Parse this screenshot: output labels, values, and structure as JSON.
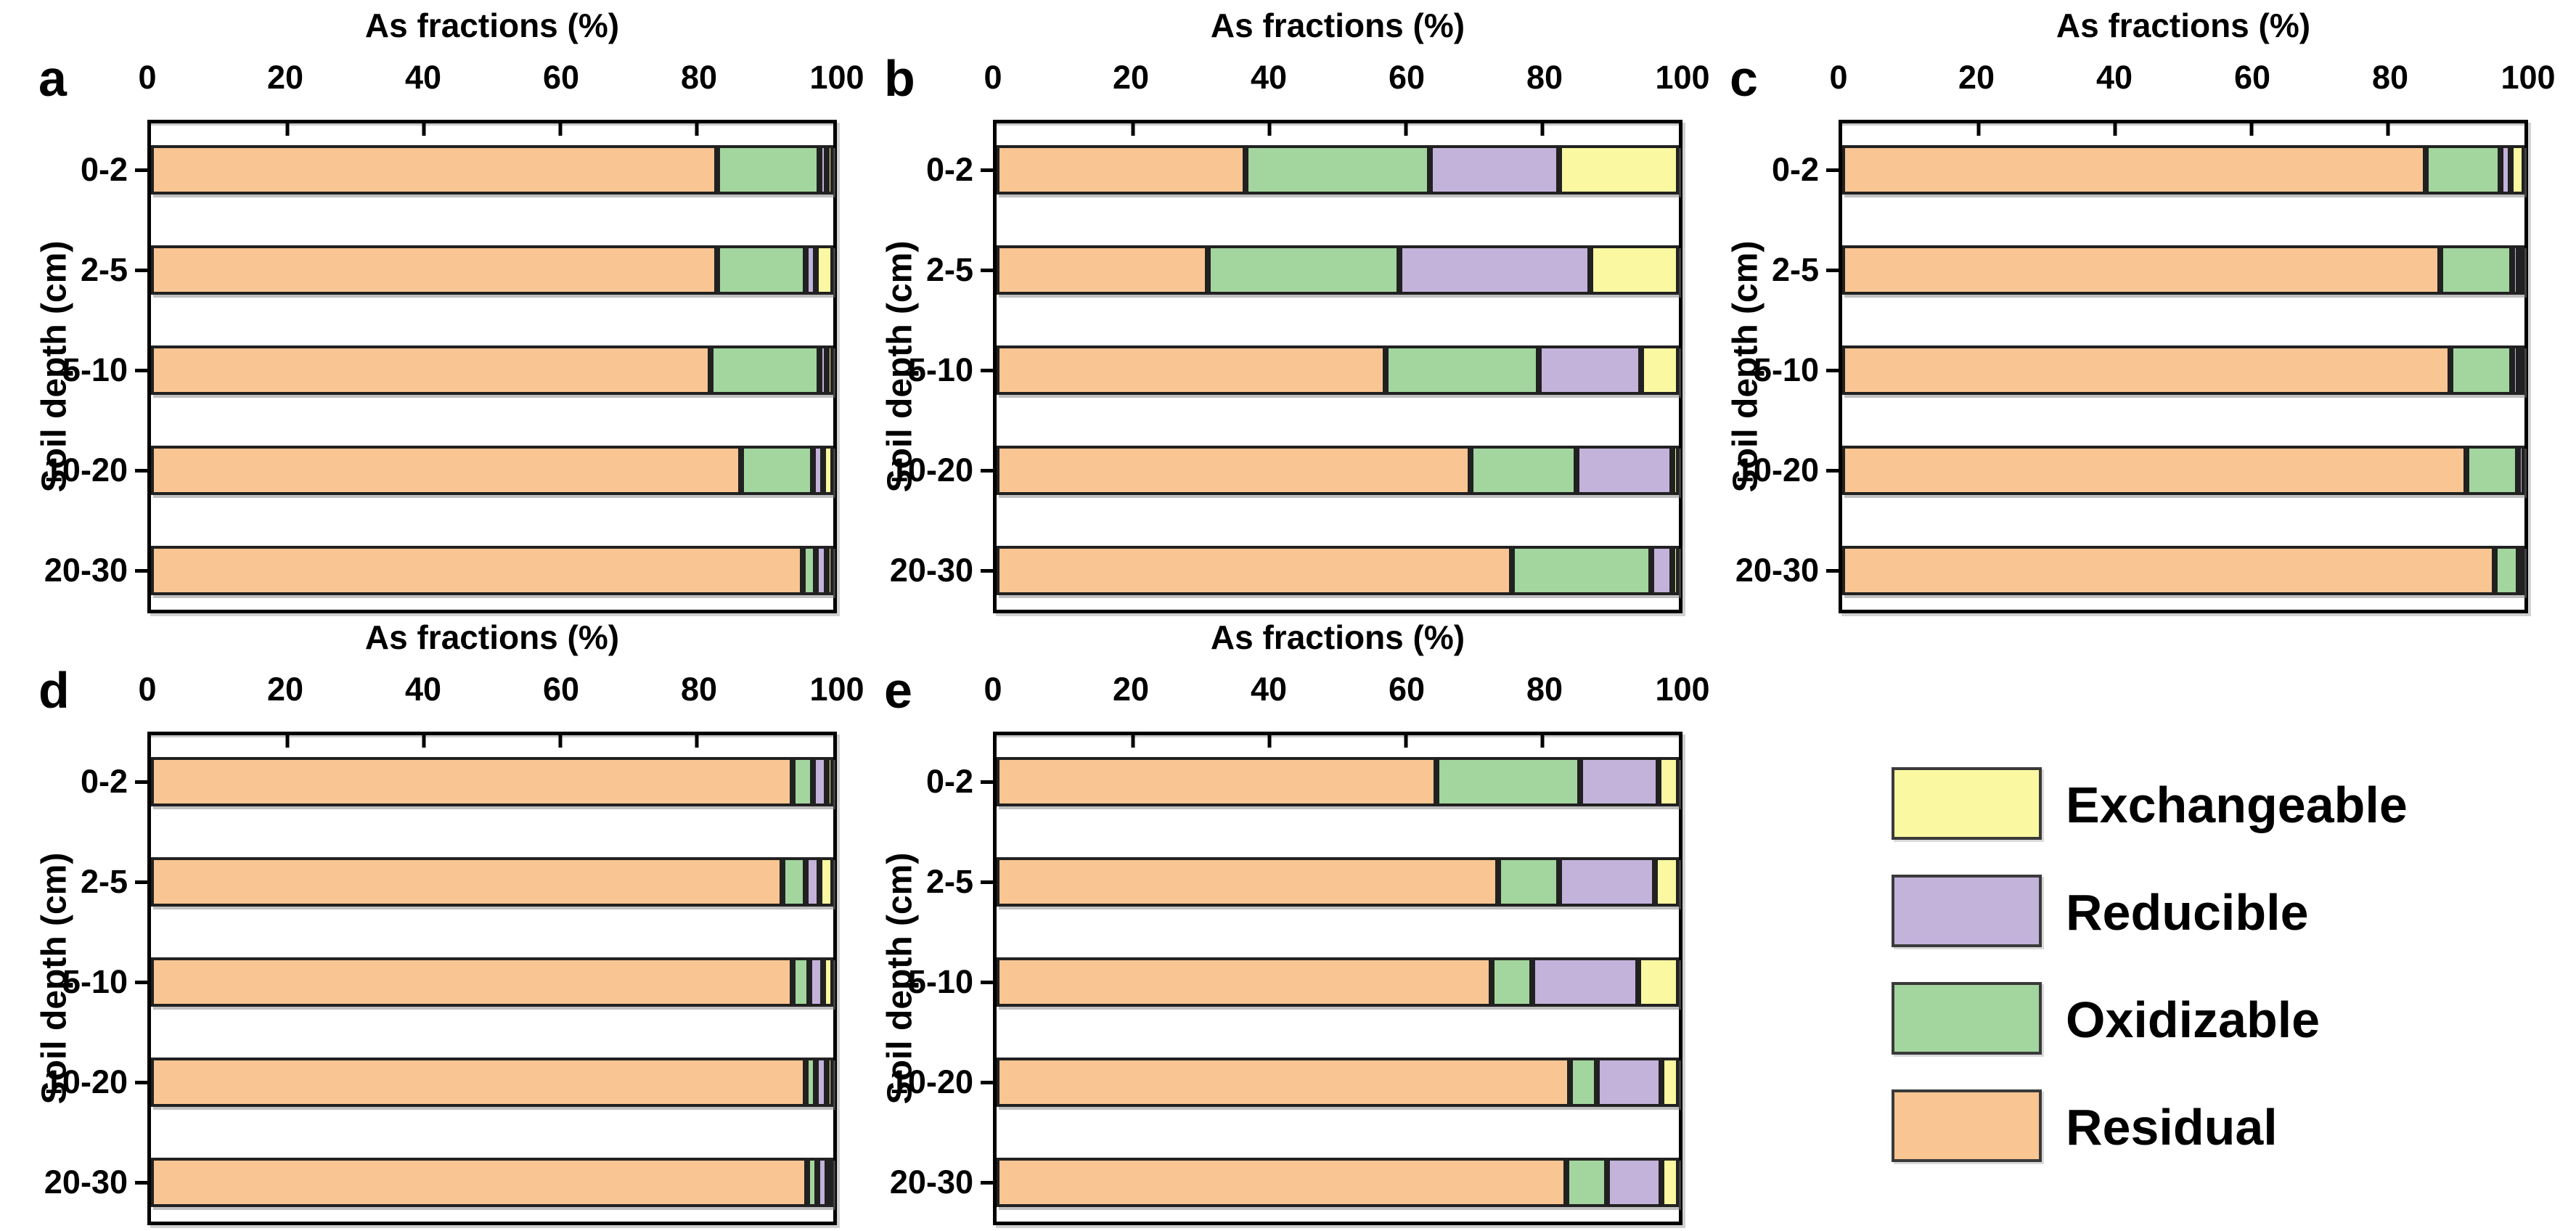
{
  "figure": {
    "axis_title": "As fractions (%)",
    "y_axis_title": "Soil depth (cm)",
    "x_ticks": [
      0,
      20,
      40,
      60,
      80,
      100
    ],
    "categories": [
      "0-2",
      "2-5",
      "5-10",
      "10-20",
      "20-30"
    ]
  },
  "colors": {
    "residual": "#F9C592",
    "oxidizable": "#A3D59E",
    "reducible": "#C3B3DA",
    "exchangeable": "#FAF8A1",
    "segment_border": "#212121",
    "frame": "#000000"
  },
  "legend": {
    "items": [
      {
        "label": "Exchangeable",
        "color_key": "exchangeable"
      },
      {
        "label": "Reducible",
        "color_key": "reducible"
      },
      {
        "label": "Oxidizable",
        "color_key": "oxidizable"
      },
      {
        "label": "Residual",
        "color_key": "residual"
      }
    ]
  },
  "chart_data": [
    {
      "panel": "a",
      "type": "bar",
      "stacked": true,
      "orientation": "horizontal",
      "title": "",
      "xlabel": "As fractions (%)",
      "ylabel": "Soil depth (cm)",
      "xlim": [
        0,
        100
      ],
      "categories": [
        "0-2",
        "2-5",
        "5-10",
        "10-20",
        "20-30"
      ],
      "series": [
        {
          "name": "Residual",
          "color_key": "residual",
          "values": [
            83,
            83,
            82,
            86.5,
            95.5
          ]
        },
        {
          "name": "Oxidizable",
          "color_key": "oxidizable",
          "values": [
            15,
            13,
            16,
            10.5,
            2
          ]
        },
        {
          "name": "Reducible",
          "color_key": "reducible",
          "values": [
            1,
            1.5,
            1,
            1.5,
            1.5
          ]
        },
        {
          "name": "Exchangeable",
          "color_key": "exchangeable",
          "values": [
            1,
            2.5,
            1,
            1.5,
            1
          ]
        }
      ]
    },
    {
      "panel": "b",
      "type": "bar",
      "stacked": true,
      "orientation": "horizontal",
      "title": "",
      "xlabel": "As fractions (%)",
      "ylabel": "Soil depth (cm)",
      "xlim": [
        0,
        100
      ],
      "categories": [
        "0-2",
        "2-5",
        "5-10",
        "10-20",
        "20-30"
      ],
      "series": [
        {
          "name": "Residual",
          "color_key": "residual",
          "values": [
            36.5,
            31,
            57,
            69.5,
            75.5
          ]
        },
        {
          "name": "Oxidizable",
          "color_key": "oxidizable",
          "values": [
            27,
            28,
            22.5,
            15.5,
            20.5
          ]
        },
        {
          "name": "Reducible",
          "color_key": "reducible",
          "values": [
            19,
            28,
            15,
            14,
            3
          ]
        },
        {
          "name": "Exchangeable",
          "color_key": "exchangeable",
          "values": [
            17.5,
            13,
            5.5,
            1,
            1
          ]
        }
      ]
    },
    {
      "panel": "c",
      "type": "bar",
      "stacked": true,
      "orientation": "horizontal",
      "title": "",
      "xlabel": "As fractions (%)",
      "ylabel": "Soil depth (cm)",
      "xlim": [
        0,
        100
      ],
      "categories": [
        "0-2",
        "2-5",
        "5-10",
        "10-20",
        "20-30"
      ],
      "series": [
        {
          "name": "Residual",
          "color_key": "residual",
          "values": [
            85.5,
            88,
            89.5,
            91.5,
            96
          ]
        },
        {
          "name": "Oxidizable",
          "color_key": "oxidizable",
          "values": [
            11,
            10.5,
            9,
            7.5,
            3.5
          ]
        },
        {
          "name": "Reducible",
          "color_key": "reducible",
          "values": [
            1.5,
            1,
            1,
            1,
            0.5
          ]
        },
        {
          "name": "Exchangeable",
          "color_key": "exchangeable",
          "values": [
            2,
            0.5,
            0.5,
            0,
            0
          ]
        }
      ]
    },
    {
      "panel": "d",
      "type": "bar",
      "stacked": true,
      "orientation": "horizontal",
      "title": "",
      "xlabel": "As fractions (%)",
      "ylabel": "Soil depth (cm)",
      "xlim": [
        0,
        100
      ],
      "categories": [
        "0-2",
        "2-5",
        "5-10",
        "10-20",
        "20-30"
      ],
      "series": [
        {
          "name": "Residual",
          "color_key": "residual",
          "values": [
            94,
            92.5,
            94,
            96,
            96.5
          ]
        },
        {
          "name": "Oxidizable",
          "color_key": "oxidizable",
          "values": [
            3,
            3.5,
            2.5,
            1.5,
            1.5
          ]
        },
        {
          "name": "Reducible",
          "color_key": "reducible",
          "values": [
            2,
            2,
            2,
            1.5,
            1.5
          ]
        },
        {
          "name": "Exchangeable",
          "color_key": "exchangeable",
          "values": [
            1,
            2,
            1.5,
            1,
            0.5
          ]
        }
      ]
    },
    {
      "panel": "e",
      "type": "bar",
      "stacked": true,
      "orientation": "horizontal",
      "title": "",
      "xlabel": "As fractions (%)",
      "ylabel": "Soil depth (cm)",
      "xlim": [
        0,
        100
      ],
      "categories": [
        "0-2",
        "2-5",
        "5-10",
        "10-20",
        "20-30"
      ],
      "series": [
        {
          "name": "Residual",
          "color_key": "residual",
          "values": [
            64.5,
            73.5,
            72.5,
            84,
            83.5
          ]
        },
        {
          "name": "Oxidizable",
          "color_key": "oxidizable",
          "values": [
            21,
            9,
            6,
            4,
            6
          ]
        },
        {
          "name": "Reducible",
          "color_key": "reducible",
          "values": [
            11.5,
            14,
            15.5,
            9.5,
            8
          ]
        },
        {
          "name": "Exchangeable",
          "color_key": "exchangeable",
          "values": [
            3,
            3.5,
            6,
            2.5,
            2.5
          ]
        }
      ]
    }
  ]
}
